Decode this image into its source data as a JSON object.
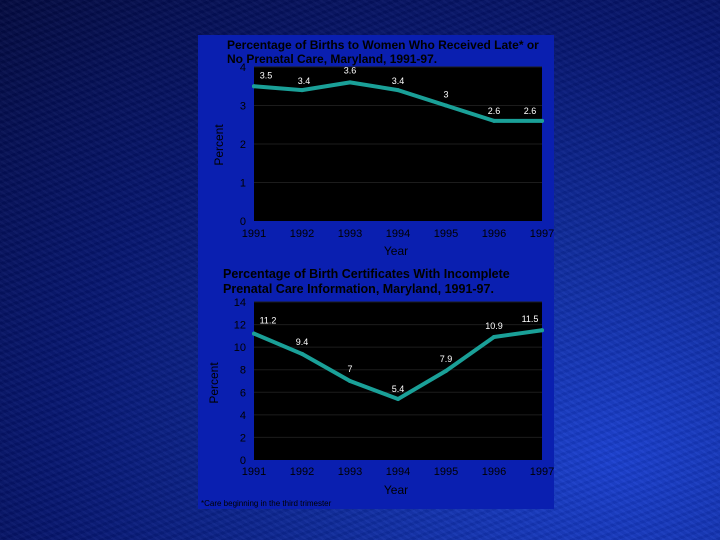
{
  "colors": {
    "line": "#1aa098",
    "plot_bg": "#000000",
    "panel_bg": "#0a1fb0"
  },
  "chart_data": [
    {
      "type": "line",
      "title_line1": "Percentage of Births to Women Who Received Late* or",
      "title_line2": "No Prenatal Care, Maryland, 1991-97.",
      "xlabel": "Year",
      "ylabel": "Percent",
      "categories": [
        "1991",
        "1992",
        "1993",
        "1994",
        "1995",
        "1996",
        "1997"
      ],
      "y_ticks": [
        "0",
        "1",
        "2",
        "3",
        "4"
      ],
      "ylim": [
        0,
        4
      ],
      "series": [
        {
          "name": "Late or no prenatal care",
          "x": [
            1991,
            1992,
            1993,
            1994,
            1995,
            1996,
            1997
          ],
          "values": [
            3.5,
            3.4,
            3.6,
            3.4,
            3.0,
            2.6,
            2.6
          ],
          "labels": [
            "3.5",
            "3.4",
            "3.6",
            "3.4",
            "3",
            "2.6",
            "2.6"
          ]
        }
      ]
    },
    {
      "type": "line",
      "title_line1": "Percentage of  Birth Certificates With Incomplete",
      "title_line2": "Prenatal Care Information, Maryland, 1991-97.",
      "xlabel": "Year",
      "ylabel": "Percent",
      "categories": [
        "1991",
        "1992",
        "1993",
        "1994",
        "1995",
        "1996",
        "1997"
      ],
      "y_ticks": [
        "0",
        "2",
        "4",
        "6",
        "8",
        "10",
        "12",
        "14"
      ],
      "ylim": [
        0,
        14
      ],
      "series": [
        {
          "name": "Incomplete prenatal care information",
          "x": [
            1991,
            1992,
            1993,
            1994,
            1995,
            1996,
            1997
          ],
          "values": [
            11.2,
            9.4,
            7.0,
            5.4,
            7.9,
            10.9,
            11.5
          ],
          "labels": [
            "11.2",
            "9.4",
            "7",
            "5.4",
            "7.9",
            "10.9",
            "11.5"
          ]
        }
      ]
    }
  ],
  "footnote": "*Care beginning in the third trimester"
}
